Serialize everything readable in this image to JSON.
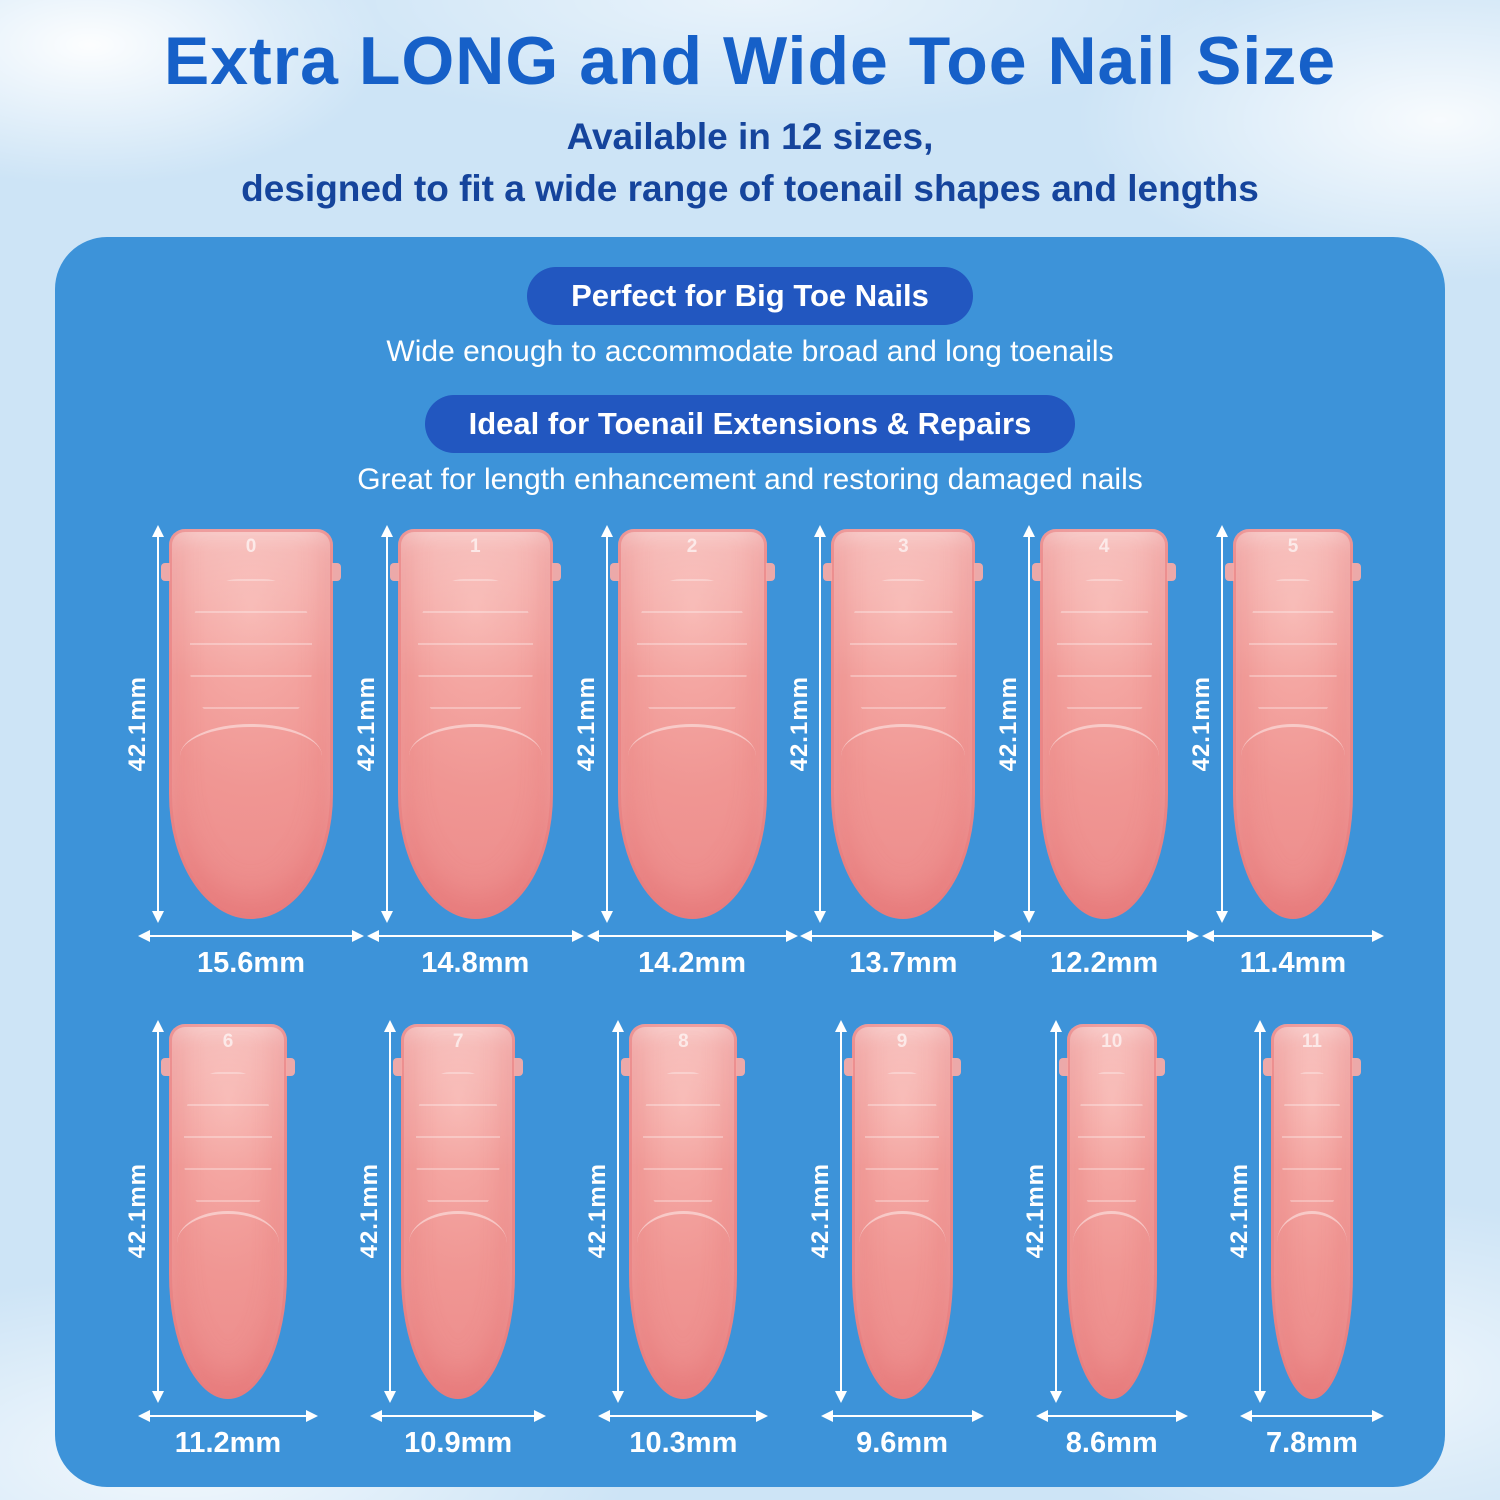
{
  "header": {
    "title": "Extra LONG and Wide Toe Nail Size",
    "subtitle_line1": "Available in 12 sizes,",
    "subtitle_line2": "designed to fit a wide range of toenail shapes and lengths"
  },
  "panel": {
    "badge1": "Perfect for Big Toe Nails",
    "desc1": "Wide enough to accommodate broad and long toenails",
    "badge2": "Ideal for Toenail Extensions & Repairs",
    "desc2": "Great for length enhancement and restoring damaged nails"
  },
  "nails": [
    {
      "number": "0",
      "height": "42.1mm",
      "width": "15.6mm"
    },
    {
      "number": "1",
      "height": "42.1mm",
      "width": "14.8mm"
    },
    {
      "number": "2",
      "height": "42.1mm",
      "width": "14.2mm"
    },
    {
      "number": "3",
      "height": "42.1mm",
      "width": "13.7mm"
    },
    {
      "number": "4",
      "height": "42.1mm",
      "width": "12.2mm"
    },
    {
      "number": "5",
      "height": "42.1mm",
      "width": "11.4mm"
    },
    {
      "number": "6",
      "height": "42.1mm",
      "width": "11.2mm"
    },
    {
      "number": "7",
      "height": "42.1mm",
      "width": "10.9mm"
    },
    {
      "number": "8",
      "height": "42.1mm",
      "width": "10.3mm"
    },
    {
      "number": "9",
      "height": "42.1mm",
      "width": "9.6mm"
    },
    {
      "number": "10",
      "height": "42.1mm",
      "width": "8.6mm"
    },
    {
      "number": "11",
      "height": "42.1mm",
      "width": "7.8mm"
    }
  ],
  "colors": {
    "background": "#cde4f6",
    "panel_blue": "#3d93d9",
    "badge_blue": "#2257c0",
    "title_blue": "#1660c8",
    "subtitle_blue": "#15449c",
    "nail_pink": "#f09693",
    "arrow_white": "#ffffff"
  }
}
